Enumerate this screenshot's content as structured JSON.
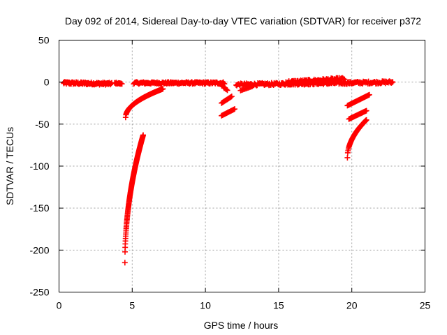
{
  "chart_data": {
    "type": "scatter",
    "title": "Day 092 of 2014, Sidereal Day-to-day VTEC variation (SDTVAR) for receiver p372",
    "xlabel": "GPS time / hours",
    "ylabel": "SDTVAR / TECUs",
    "xlim": [
      0,
      25
    ],
    "ylim": [
      -250,
      50
    ],
    "xticks": [
      0,
      5,
      10,
      15,
      20,
      25
    ],
    "yticks": [
      50,
      0,
      -50,
      -100,
      -150,
      -200,
      -250
    ],
    "grid": true,
    "marker": "plus",
    "color": "#ff0000",
    "segments": [
      {
        "name": "baseline-early",
        "x_start": 0.3,
        "x_end": 3.6,
        "y_start": -1,
        "y_end": -2,
        "jitter": 1.5,
        "count": 100
      },
      {
        "name": "baseline-early-tail",
        "x_start": 3.8,
        "x_end": 4.3,
        "y_start": -1,
        "y_end": -2,
        "jitter": 0.8,
        "count": 14
      },
      {
        "name": "baseline-mid",
        "x_start": 5.1,
        "x_end": 11.3,
        "y_start": -1,
        "y_end": -1,
        "jitter": 1.2,
        "count": 160
      },
      {
        "name": "baseline-mid-tail",
        "x_start": 11.0,
        "x_end": 11.5,
        "y_start": -2,
        "y_end": -10,
        "jitter": 1.0,
        "count": 10
      },
      {
        "name": "baseline-late",
        "x_start": 12.1,
        "x_end": 22.8,
        "y_start": -3,
        "y_end": 0,
        "jitter": 1.5,
        "count": 240
      },
      {
        "name": "baseline-late-bump",
        "x_start": 15.5,
        "x_end": 19.5,
        "y_start": 0,
        "y_end": 4,
        "jitter": 1.5,
        "count": 80
      },
      {
        "name": "descent-a",
        "x_start": 4.55,
        "x_end": 7.1,
        "y_start": -42,
        "y_end": -8,
        "shape": "sqrt",
        "count": 120
      },
      {
        "name": "descent-b",
        "x_start": 4.5,
        "x_end": 5.75,
        "y_start": -215,
        "y_end": -63,
        "shape": "sqrt",
        "count": 140
      },
      {
        "name": "dip-11-upper",
        "x_start": 11.1,
        "x_end": 11.8,
        "y_start": -25,
        "y_end": -17,
        "count": 14
      },
      {
        "name": "dip-11-lower",
        "x_start": 11.1,
        "x_end": 12.0,
        "y_start": -40,
        "y_end": -32,
        "count": 16
      },
      {
        "name": "dip-12",
        "x_start": 12.4,
        "x_end": 13.2,
        "y_start": -10,
        "y_end": -5,
        "count": 12
      },
      {
        "name": "late-upper",
        "x_start": 19.7,
        "x_end": 21.2,
        "y_start": -28,
        "y_end": -15,
        "count": 30
      },
      {
        "name": "late-middle",
        "x_start": 19.8,
        "x_end": 21.0,
        "y_start": -44,
        "y_end": -34,
        "count": 24
      },
      {
        "name": "late-lower",
        "x_start": 19.7,
        "x_end": 21.0,
        "y_start": -90,
        "y_end": -45,
        "shape": "sqrt",
        "count": 60
      }
    ]
  }
}
